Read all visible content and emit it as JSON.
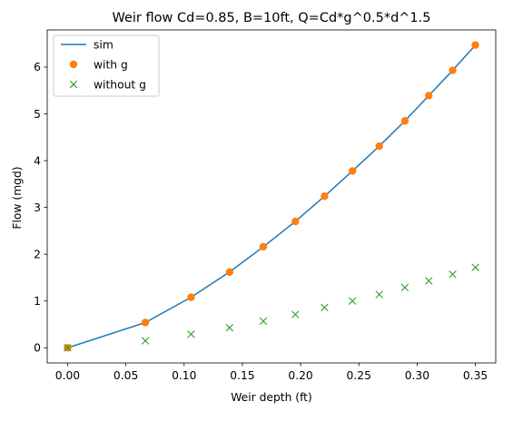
{
  "chart_data": {
    "type": "line",
    "title": "Weir flow Cd=0.85, B=10ft, Q=Cd*g^0.5*d^1.5",
    "xlabel": "Weir depth (ft)",
    "ylabel": "Flow (mgd)",
    "xlim": [
      -0.0175,
      0.3675
    ],
    "ylim": [
      -0.3235,
      6.794
    ],
    "xticks": [
      "0.00",
      "0.05",
      "0.10",
      "0.15",
      "0.20",
      "0.25",
      "0.30",
      "0.35"
    ],
    "yticks": [
      "0",
      "1",
      "2",
      "3",
      "4",
      "5",
      "6"
    ],
    "grid": false,
    "legend_position": "top-left",
    "series": [
      {
        "name": "sim",
        "style": "line",
        "color": "#1f77b4",
        "x": [
          0.0,
          0.0667,
          0.106,
          0.139,
          0.168,
          0.1955,
          0.2205,
          0.2445,
          0.2675,
          0.2895,
          0.31,
          0.3305,
          0.35
        ],
        "y": [
          0.0,
          0.54,
          1.08,
          1.62,
          2.16,
          2.7,
          3.24,
          3.78,
          4.31,
          4.85,
          5.39,
          5.93,
          6.47
        ]
      },
      {
        "name": "with g",
        "style": "circle",
        "color": "#ff7f0e",
        "x": [
          0.0,
          0.0667,
          0.106,
          0.139,
          0.168,
          0.1955,
          0.2205,
          0.2445,
          0.2675,
          0.2895,
          0.31,
          0.3305,
          0.35
        ],
        "y": [
          0.0,
          0.54,
          1.08,
          1.62,
          2.16,
          2.7,
          3.24,
          3.78,
          4.31,
          4.85,
          5.39,
          5.93,
          6.47
        ]
      },
      {
        "name": "without g",
        "style": "x",
        "color": "#2ca02c",
        "x": [
          0.0,
          0.0667,
          0.106,
          0.139,
          0.168,
          0.1955,
          0.2205,
          0.2445,
          0.2675,
          0.2895,
          0.31,
          0.3305,
          0.35
        ],
        "y": [
          0.0,
          0.15,
          0.29,
          0.43,
          0.57,
          0.71,
          0.86,
          1.0,
          1.14,
          1.29,
          1.43,
          1.57,
          1.72
        ]
      }
    ]
  }
}
